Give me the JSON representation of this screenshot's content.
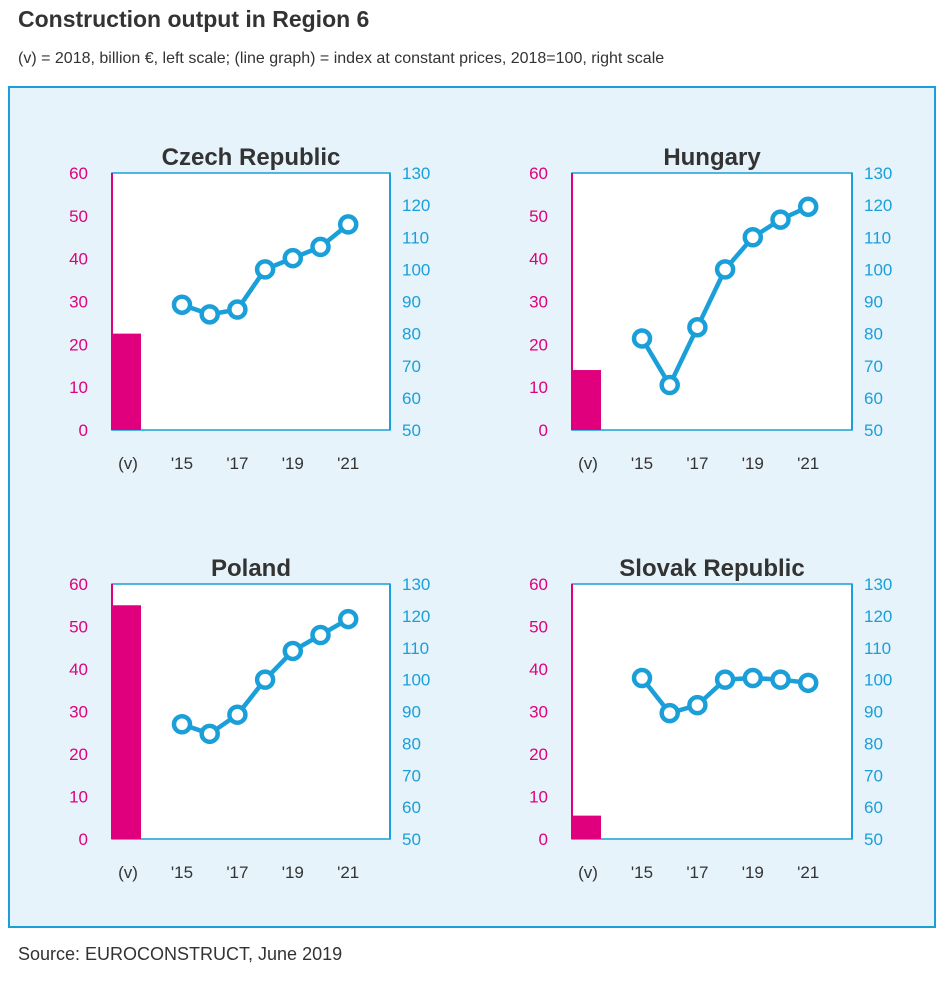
{
  "title": "Construction output in Region 6",
  "subtitle": "(v) = 2018, billion €, left scale;  (line graph) = index at constant prices, 2018=100, right scale",
  "source": "Source: EUROCONSTRUCT, June 2019",
  "colors": {
    "bar": "#e0007e",
    "line": "#1a9fd9",
    "panel_bg": "#e6f3fb",
    "title": "#333333"
  },
  "chart_data": [
    {
      "type": "bar+line",
      "title": "Czech Republic",
      "left_axis": {
        "ylim": [
          0,
          60
        ],
        "ticks": [
          "0",
          "10",
          "20",
          "30",
          "40",
          "50",
          "60"
        ]
      },
      "right_axis": {
        "ylim": [
          50,
          130
        ],
        "ticks": [
          "50",
          "60",
          "70",
          "80",
          "90",
          "100",
          "110",
          "120",
          "130"
        ]
      },
      "x_labels": [
        "(v)",
        "'15",
        "'17",
        "'19",
        "'21"
      ],
      "bar": {
        "category": "(v)",
        "value": 22.5
      },
      "line": {
        "x": [
          2015,
          2016,
          2017,
          2018,
          2019,
          2020,
          2021
        ],
        "values": [
          89,
          86,
          87.5,
          100,
          103.5,
          107,
          114
        ]
      }
    },
    {
      "type": "bar+line",
      "title": "Hungary",
      "left_axis": {
        "ylim": [
          0,
          60
        ],
        "ticks": [
          "0",
          "10",
          "20",
          "30",
          "40",
          "50",
          "60"
        ]
      },
      "right_axis": {
        "ylim": [
          50,
          130
        ],
        "ticks": [
          "50",
          "60",
          "70",
          "80",
          "90",
          "100",
          "110",
          "120",
          "130"
        ]
      },
      "x_labels": [
        "(v)",
        "'15",
        "'17",
        "'19",
        "'21"
      ],
      "bar": {
        "category": "(v)",
        "value": 14
      },
      "line": {
        "x": [
          2015,
          2016,
          2017,
          2018,
          2019,
          2020,
          2021
        ],
        "values": [
          78.5,
          64,
          82,
          100,
          110,
          115.5,
          119.5
        ]
      }
    },
    {
      "type": "bar+line",
      "title": "Poland",
      "left_axis": {
        "ylim": [
          0,
          60
        ],
        "ticks": [
          "0",
          "10",
          "20",
          "30",
          "40",
          "50",
          "60"
        ]
      },
      "right_axis": {
        "ylim": [
          50,
          130
        ],
        "ticks": [
          "50",
          "60",
          "70",
          "80",
          "90",
          "100",
          "110",
          "120",
          "130"
        ]
      },
      "x_labels": [
        "(v)",
        "'15",
        "'17",
        "'19",
        "'21"
      ],
      "bar": {
        "category": "(v)",
        "value": 55
      },
      "line": {
        "x": [
          2015,
          2016,
          2017,
          2018,
          2019,
          2020,
          2021
        ],
        "values": [
          86,
          83,
          89,
          100,
          109,
          114,
          119
        ]
      }
    },
    {
      "type": "bar+line",
      "title": "Slovak Republic",
      "left_axis": {
        "ylim": [
          0,
          60
        ],
        "ticks": [
          "0",
          "10",
          "20",
          "30",
          "40",
          "50",
          "60"
        ]
      },
      "right_axis": {
        "ylim": [
          50,
          130
        ],
        "ticks": [
          "50",
          "60",
          "70",
          "80",
          "90",
          "100",
          "110",
          "120",
          "130"
        ]
      },
      "x_labels": [
        "(v)",
        "'15",
        "'17",
        "'19",
        "'21"
      ],
      "bar": {
        "category": "(v)",
        "value": 5.5
      },
      "line": {
        "x": [
          2015,
          2016,
          2017,
          2018,
          2019,
          2020,
          2021
        ],
        "values": [
          100.5,
          89.5,
          92,
          100,
          100.5,
          100,
          99
        ]
      }
    }
  ]
}
